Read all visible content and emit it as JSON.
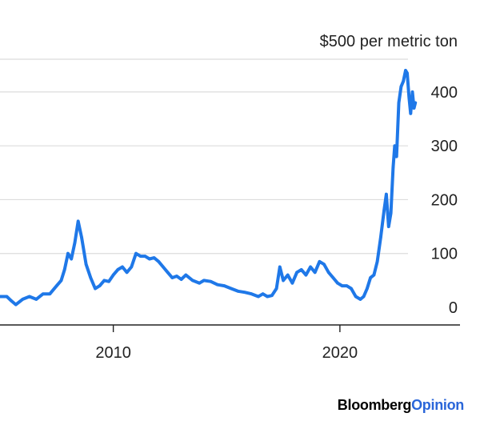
{
  "chart_data": {
    "type": "line",
    "title": "",
    "unit_label": "$500 per metric ton",
    "xlabel": "",
    "ylabel": "",
    "xlim": [
      2005.0,
      2025.3
    ],
    "ylim": [
      -30,
      470
    ],
    "y_ticks": [
      0,
      100,
      200,
      300,
      400
    ],
    "y_tick_labels": [
      "0",
      "100",
      "200",
      "300",
      "400"
    ],
    "x_ticks": [
      2010,
      2020
    ],
    "x_tick_labels": [
      "2010",
      "2020"
    ],
    "grid": true,
    "line_color": "#1f78e8",
    "series": [
      {
        "values": [
          {
            "x": 2005.0,
            "y": 20
          },
          {
            "x": 2005.3,
            "y": 20
          },
          {
            "x": 2005.5,
            "y": 12
          },
          {
            "x": 2005.7,
            "y": 5
          },
          {
            "x": 2006.0,
            "y": 15
          },
          {
            "x": 2006.3,
            "y": 20
          },
          {
            "x": 2006.6,
            "y": 15
          },
          {
            "x": 2006.9,
            "y": 25
          },
          {
            "x": 2007.2,
            "y": 25
          },
          {
            "x": 2007.5,
            "y": 40
          },
          {
            "x": 2007.7,
            "y": 50
          },
          {
            "x": 2007.85,
            "y": 70
          },
          {
            "x": 2008.0,
            "y": 100
          },
          {
            "x": 2008.15,
            "y": 90
          },
          {
            "x": 2008.3,
            "y": 120
          },
          {
            "x": 2008.45,
            "y": 160
          },
          {
            "x": 2008.6,
            "y": 130
          },
          {
            "x": 2008.8,
            "y": 80
          },
          {
            "x": 2009.0,
            "y": 55
          },
          {
            "x": 2009.2,
            "y": 35
          },
          {
            "x": 2009.4,
            "y": 40
          },
          {
            "x": 2009.6,
            "y": 50
          },
          {
            "x": 2009.8,
            "y": 48
          },
          {
            "x": 2010.0,
            "y": 60
          },
          {
            "x": 2010.2,
            "y": 70
          },
          {
            "x": 2010.4,
            "y": 75
          },
          {
            "x": 2010.6,
            "y": 65
          },
          {
            "x": 2010.8,
            "y": 75
          },
          {
            "x": 2011.0,
            "y": 100
          },
          {
            "x": 2011.2,
            "y": 95
          },
          {
            "x": 2011.4,
            "y": 95
          },
          {
            "x": 2011.6,
            "y": 90
          },
          {
            "x": 2011.8,
            "y": 92
          },
          {
            "x": 2012.0,
            "y": 85
          },
          {
            "x": 2012.2,
            "y": 75
          },
          {
            "x": 2012.4,
            "y": 65
          },
          {
            "x": 2012.6,
            "y": 55
          },
          {
            "x": 2012.8,
            "y": 58
          },
          {
            "x": 2013.0,
            "y": 52
          },
          {
            "x": 2013.2,
            "y": 60
          },
          {
            "x": 2013.5,
            "y": 50
          },
          {
            "x": 2013.8,
            "y": 45
          },
          {
            "x": 2014.0,
            "y": 50
          },
          {
            "x": 2014.3,
            "y": 48
          },
          {
            "x": 2014.6,
            "y": 42
          },
          {
            "x": 2014.9,
            "y": 40
          },
          {
            "x": 2015.2,
            "y": 35
          },
          {
            "x": 2015.5,
            "y": 30
          },
          {
            "x": 2015.8,
            "y": 28
          },
          {
            "x": 2016.1,
            "y": 25
          },
          {
            "x": 2016.4,
            "y": 20
          },
          {
            "x": 2016.6,
            "y": 25
          },
          {
            "x": 2016.8,
            "y": 20
          },
          {
            "x": 2017.0,
            "y": 22
          },
          {
            "x": 2017.2,
            "y": 35
          },
          {
            "x": 2017.35,
            "y": 75
          },
          {
            "x": 2017.5,
            "y": 50
          },
          {
            "x": 2017.7,
            "y": 60
          },
          {
            "x": 2017.9,
            "y": 45
          },
          {
            "x": 2018.1,
            "y": 65
          },
          {
            "x": 2018.3,
            "y": 70
          },
          {
            "x": 2018.5,
            "y": 60
          },
          {
            "x": 2018.7,
            "y": 75
          },
          {
            "x": 2018.9,
            "y": 65
          },
          {
            "x": 2019.1,
            "y": 85
          },
          {
            "x": 2019.3,
            "y": 80
          },
          {
            "x": 2019.5,
            "y": 65
          },
          {
            "x": 2019.7,
            "y": 55
          },
          {
            "x": 2019.9,
            "y": 45
          },
          {
            "x": 2020.1,
            "y": 40
          },
          {
            "x": 2020.3,
            "y": 40
          },
          {
            "x": 2020.5,
            "y": 35
          },
          {
            "x": 2020.7,
            "y": 20
          },
          {
            "x": 2020.9,
            "y": 15
          },
          {
            "x": 2021.05,
            "y": 20
          },
          {
            "x": 2021.2,
            "y": 35
          },
          {
            "x": 2021.35,
            "y": 55
          },
          {
            "x": 2021.5,
            "y": 60
          },
          {
            "x": 2021.65,
            "y": 85
          },
          {
            "x": 2021.8,
            "y": 130
          },
          {
            "x": 2021.95,
            "y": 180
          },
          {
            "x": 2022.05,
            "y": 210
          },
          {
            "x": 2022.15,
            "y": 150
          },
          {
            "x": 2022.25,
            "y": 175
          },
          {
            "x": 2022.35,
            "y": 260
          },
          {
            "x": 2022.42,
            "y": 300
          },
          {
            "x": 2022.5,
            "y": 280
          },
          {
            "x": 2022.6,
            "y": 380
          },
          {
            "x": 2022.7,
            "y": 410
          },
          {
            "x": 2022.8,
            "y": 420
          },
          {
            "x": 2022.9,
            "y": 440
          },
          {
            "x": 2022.97,
            "y": 435
          },
          {
            "x": 2023.05,
            "y": 390
          },
          {
            "x": 2023.12,
            "y": 360
          },
          {
            "x": 2023.2,
            "y": 400
          },
          {
            "x": 2023.27,
            "y": 370
          },
          {
            "x": 2023.33,
            "y": 380
          }
        ]
      }
    ]
  },
  "brand": {
    "part1": "Bloomberg",
    "part2": "Opinion"
  }
}
